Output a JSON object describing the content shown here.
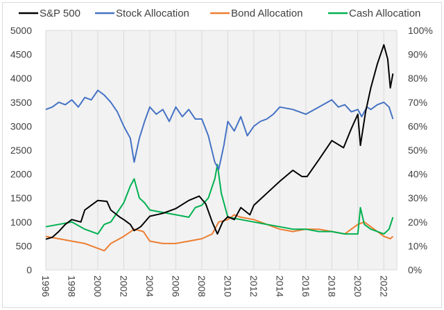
{
  "chart_data": {
    "type": "line",
    "title": "",
    "xlabel": "",
    "ylabel_left": "",
    "ylabel_right": "",
    "x_ticks": [
      "1996",
      "1998",
      "2000",
      "2002",
      "2004",
      "2006",
      "2008",
      "2010",
      "2012",
      "2014",
      "2016",
      "2018",
      "2020",
      "2022"
    ],
    "xlim": [
      1996,
      2023
    ],
    "y_left": {
      "ylim": [
        0,
        5000
      ],
      "ticks": [
        "0",
        "500",
        "1000",
        "1500",
        "2000",
        "2500",
        "3000",
        "3500",
        "4000",
        "4500",
        "5000"
      ]
    },
    "y_right": {
      "ylim": [
        0,
        100
      ],
      "ticks": [
        "0%",
        "10%",
        "20%",
        "30%",
        "40%",
        "50%",
        "60%",
        "70%",
        "80%",
        "90%",
        "100%"
      ]
    },
    "grid": "vertical",
    "legend_position": "top",
    "series": [
      {
        "name": "S&P 500",
        "axis": "left",
        "color": "#000000",
        "x": [
          1996,
          1996.5,
          1997,
          1997.5,
          1998,
          1998.7,
          1999,
          1999.5,
          2000,
          2000.7,
          2001,
          2001.7,
          2002,
          2002.5,
          2002.8,
          2003.3,
          2004,
          2005,
          2006,
          2007,
          2007.8,
          2008.3,
          2008.8,
          2009.2,
          2009.6,
          2010,
          2010.5,
          2011,
          2011.7,
          2012,
          2013,
          2014,
          2015,
          2015.7,
          2016.1,
          2017,
          2018,
          2018.9,
          2019.5,
          2020,
          2020.2,
          2020.6,
          2021,
          2021.5,
          2022,
          2022.3,
          2022.5,
          2022.7
        ],
        "y": [
          640,
          680,
          800,
          950,
          1050,
          1000,
          1250,
          1350,
          1450,
          1430,
          1250,
          1100,
          1050,
          950,
          820,
          900,
          1120,
          1180,
          1280,
          1450,
          1540,
          1380,
          1000,
          750,
          1000,
          1110,
          1050,
          1300,
          1150,
          1350,
          1600,
          1850,
          2080,
          1950,
          1950,
          2300,
          2700,
          2550,
          2950,
          3250,
          2600,
          3300,
          3800,
          4300,
          4700,
          4400,
          3800,
          4100
        ]
      },
      {
        "name": "Stock Allocation",
        "axis": "right",
        "color": "#4472c4",
        "x": [
          1996,
          1996.5,
          1997,
          1997.5,
          1998,
          1998.5,
          1999,
          1999.5,
          2000,
          2000.5,
          2001,
          2001.5,
          2002,
          2002.5,
          2002.8,
          2003.2,
          2003.6,
          2004,
          2004.5,
          2005,
          2005.5,
          2006,
          2006.5,
          2007,
          2007.5,
          2008,
          2008.5,
          2009,
          2009.3,
          2009.7,
          2010,
          2010.5,
          2011,
          2011.5,
          2012,
          2012.5,
          2013,
          2013.5,
          2014,
          2015,
          2016,
          2017,
          2018,
          2018.5,
          2019,
          2019.5,
          2020,
          2020.3,
          2020.7,
          2021,
          2021.5,
          2022,
          2022.4,
          2022.7
        ],
        "y": [
          67,
          68,
          70,
          69,
          71,
          68,
          72,
          71,
          75,
          73,
          70,
          66,
          60,
          55,
          45,
          55,
          62,
          68,
          65,
          67,
          62,
          68,
          64,
          67,
          63,
          63,
          56,
          45,
          42,
          52,
          62,
          58,
          64,
          56,
          60,
          62,
          63,
          65,
          68,
          67,
          65,
          68,
          71,
          68,
          69,
          66,
          67,
          64,
          68,
          67,
          69,
          70,
          68,
          63
        ]
      },
      {
        "name": "Bond Allocation",
        "axis": "right",
        "color": "#ed7d31",
        "x": [
          1996,
          1997,
          1998,
          1999,
          2000,
          2000.5,
          2001,
          2002,
          2002.8,
          2003.5,
          2004,
          2005,
          2006,
          2007,
          2008,
          2008.8,
          2009.3,
          2010,
          2010.5,
          2011,
          2012,
          2013,
          2014,
          2015,
          2016,
          2017,
          2018,
          2019,
          2020,
          2020.5,
          2021,
          2021.5,
          2022,
          2022.5,
          2022.7
        ],
        "y": [
          14,
          13,
          12,
          11,
          9,
          8,
          11,
          14,
          17,
          16,
          12,
          11,
          11,
          12,
          13,
          15,
          20,
          21,
          23,
          22,
          21,
          19,
          17,
          16,
          17,
          17,
          16,
          15,
          19,
          20,
          18,
          16,
          14,
          13,
          14
        ]
      },
      {
        "name": "Cash Allocation",
        "axis": "right",
        "color": "#00b050",
        "x": [
          1996,
          1997,
          1998,
          1999,
          2000,
          2000.5,
          2001,
          2001.5,
          2002,
          2002.5,
          2002.8,
          2003.2,
          2003.6,
          2004,
          2005,
          2006,
          2007,
          2007.5,
          2008,
          2008.5,
          2009,
          2009.2,
          2009.5,
          2010,
          2011,
          2012,
          2013,
          2014,
          2015,
          2016,
          2017,
          2018,
          2019,
          2020,
          2020.2,
          2020.5,
          2021,
          2021.5,
          2022,
          2022.4,
          2022.7
        ],
        "y": [
          18,
          19,
          20,
          17,
          15,
          19,
          20,
          24,
          28,
          35,
          38,
          30,
          28,
          25,
          24,
          23,
          22,
          26,
          27,
          30,
          38,
          44,
          32,
          22,
          21,
          20,
          19,
          18,
          17,
          17,
          16,
          16,
          15,
          15,
          26,
          19,
          17,
          16,
          15,
          17,
          22
        ]
      }
    ]
  }
}
